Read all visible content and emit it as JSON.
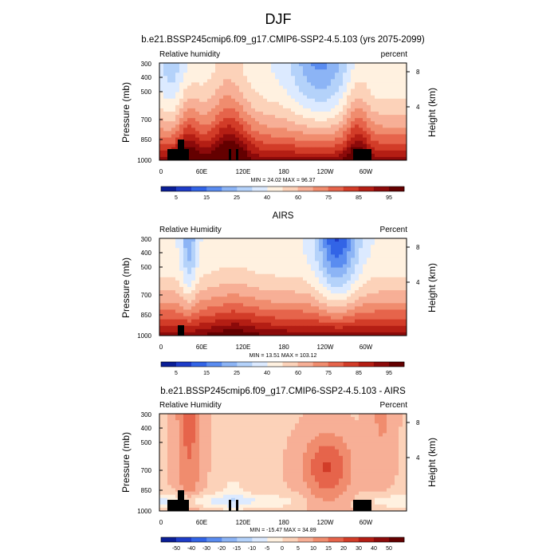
{
  "figure": {
    "main_title": "DJF"
  },
  "palettes": {
    "rh": [
      "#0a1e96",
      "#1e3cc8",
      "#3264e6",
      "#5a8cf0",
      "#8cb4f5",
      "#b4d2fa",
      "#dceaff",
      "#fff1e0",
      "#fcd2b9",
      "#f7af96",
      "#f08c6e",
      "#e6644b",
      "#d23c28",
      "#b41e14",
      "#8c0a0a",
      "#640000"
    ],
    "diff": [
      "#0a1e96",
      "#1e3cc8",
      "#3264e6",
      "#5a8cf0",
      "#8cb4f5",
      "#b4d2fa",
      "#dceaff",
      "#fff1e0",
      "#fcd2b9",
      "#f7af96",
      "#f08c6e",
      "#e6644b",
      "#d23c28",
      "#b41e14",
      "#8c0a0a",
      "#640000"
    ]
  },
  "colors": {
    "terrain": "#000000",
    "frame": "#000000"
  },
  "chart_data": [
    {
      "type": "heatmap",
      "title": "b.e21.BSSP245cmip6.f09_g17.CMIP6-SSP2-4.5.103 (yrs 2075-2099)",
      "left_label": "Relative humidity",
      "right_label": "percent",
      "ylabel": "Pressure (mb)",
      "right_axis_label": "Height (km)",
      "x_ticks": [
        "0",
        "60E",
        "120E",
        "180",
        "120W",
        "60W"
      ],
      "y_ticks": [
        "300",
        "400",
        "500",
        "700",
        "850",
        "1000"
      ],
      "height_ticks": [
        "8",
        "4"
      ],
      "stats": "MIN = 24.02  MAX = 96.37",
      "ylim": [
        1000,
        300
      ],
      "palette": "rh",
      "colorbar_labels": [
        "5",
        "15",
        "25",
        "40",
        "60",
        "75",
        "85",
        "95"
      ],
      "values_desc": "percent"
    },
    {
      "type": "heatmap",
      "title": "AIRS",
      "left_label": "Relative Humidity",
      "right_label": "Percent",
      "ylabel": "Pressure (mb)",
      "right_axis_label": "Height (km)",
      "x_ticks": [
        "0",
        "60E",
        "120E",
        "180",
        "120W",
        "60W"
      ],
      "y_ticks": [
        "300",
        "400",
        "500",
        "700",
        "850",
        "1000"
      ],
      "height_ticks": [
        "8",
        "4"
      ],
      "stats": "MIN = 13.51  MAX = 103.12",
      "ylim": [
        1000,
        300
      ],
      "palette": "rh",
      "colorbar_labels": [
        "5",
        "15",
        "25",
        "40",
        "60",
        "75",
        "85",
        "95"
      ]
    },
    {
      "type": "heatmap",
      "title": "b.e21.BSSP245cmip6.f09_g17.CMIP6-SSP2-4.5.103 - AIRS",
      "left_label": "Relative Humidity",
      "right_label": "Percent",
      "ylabel": "Pressure (mb)",
      "right_axis_label": "Height (km)",
      "x_ticks": [
        "0",
        "60E",
        "120E",
        "180",
        "120W",
        "60W"
      ],
      "y_ticks": [
        "300",
        "400",
        "500",
        "700",
        "850",
        "1000"
      ],
      "height_ticks": [
        "8",
        "4"
      ],
      "stats": "MIN = -15.47  MAX = 34.89",
      "ylim": [
        1000,
        300
      ],
      "palette": "diff",
      "colorbar_labels": [
        "-50",
        "-40",
        "-30",
        "-20",
        "-15",
        "-10",
        "-5",
        "0",
        "5",
        "10",
        "15",
        "20",
        "30",
        "40",
        "50"
      ]
    }
  ]
}
